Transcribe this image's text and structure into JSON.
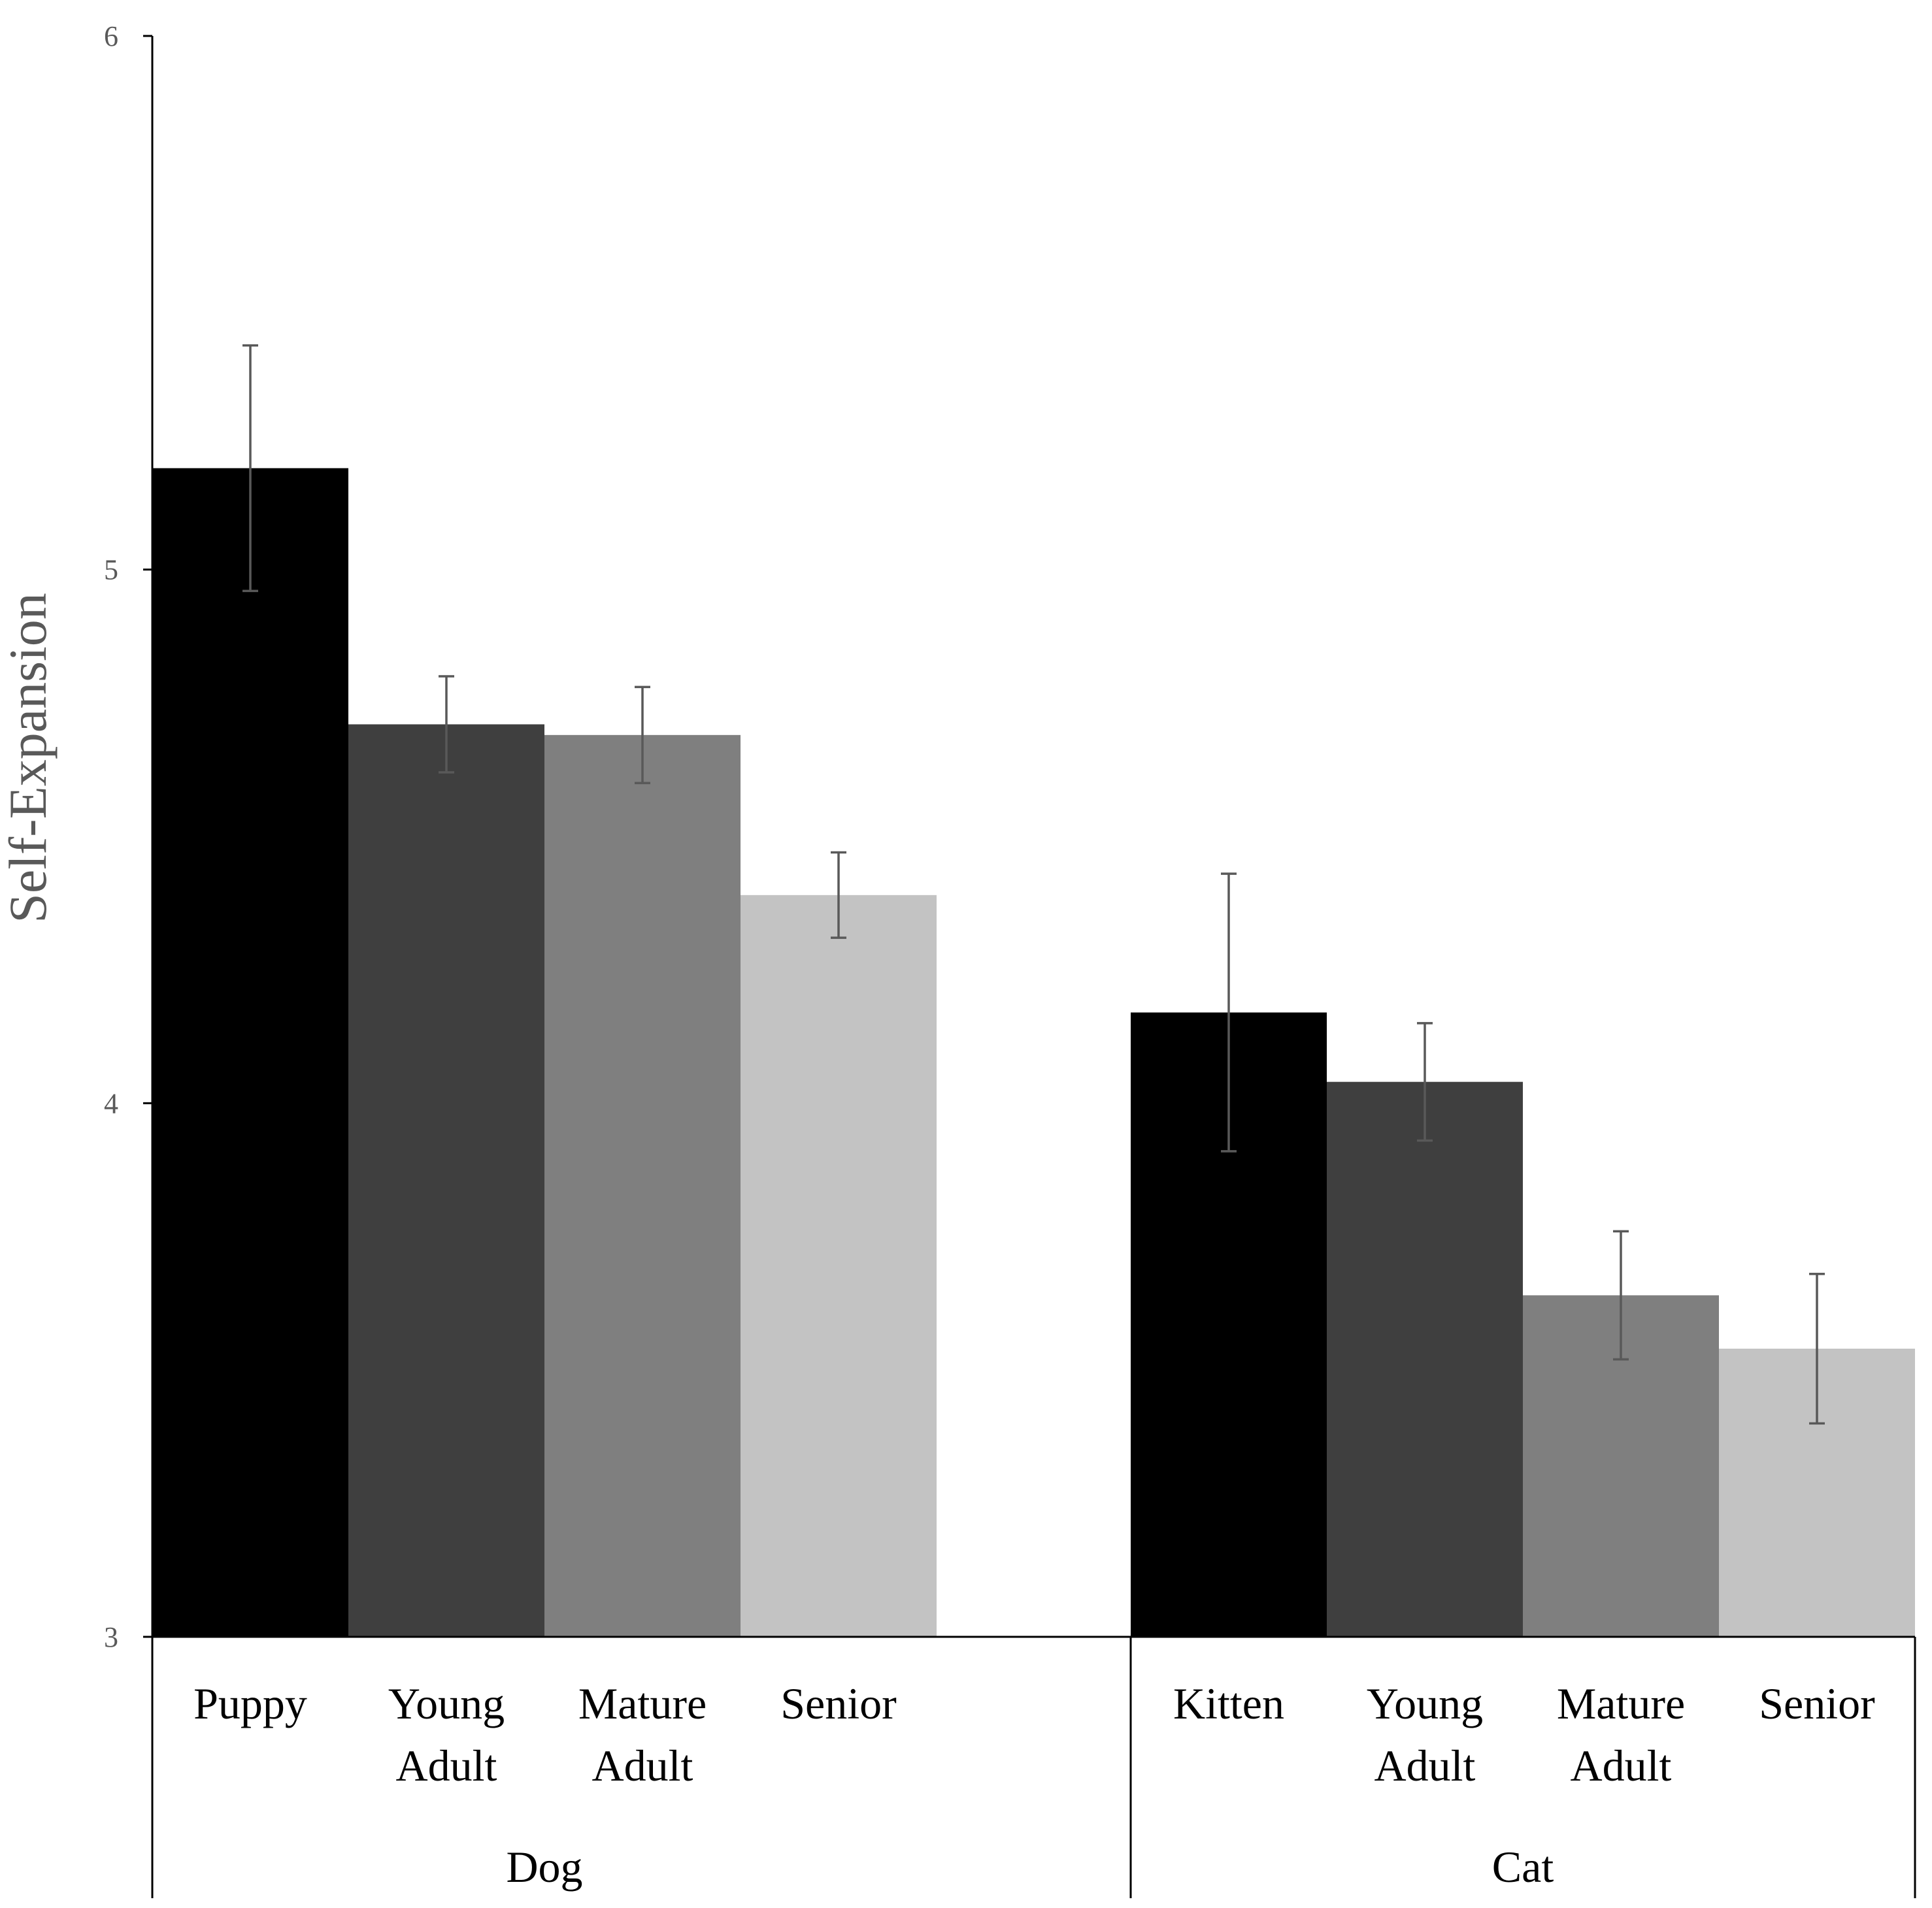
{
  "chart_data": {
    "type": "bar",
    "title": "",
    "xlabel": "",
    "ylabel": "Self-Expansion",
    "ylim": [
      3,
      6
    ],
    "yticks": [
      "3",
      "4",
      "5",
      "6"
    ],
    "grid": false,
    "groups": [
      {
        "name": "Dog",
        "bars": [
          {
            "label_lines": [
              "Puppy"
            ],
            "value": 5.19,
            "err_low": 4.96,
            "err_high": 5.42,
            "color": "#000000"
          },
          {
            "label_lines": [
              "Young",
              "Adult"
            ],
            "value": 4.71,
            "err_low": 4.62,
            "err_high": 4.8,
            "color": "#3f3f3f"
          },
          {
            "label_lines": [
              "Mature",
              "Adult"
            ],
            "value": 4.69,
            "err_low": 4.6,
            "err_high": 4.78,
            "color": "#7f7f7f"
          },
          {
            "label_lines": [
              "Senior"
            ],
            "value": 4.39,
            "err_low": 4.31,
            "err_high": 4.47,
            "color": "#c3c3c3"
          }
        ]
      },
      {
        "name": "Cat",
        "bars": [
          {
            "label_lines": [
              "Kitten"
            ],
            "value": 4.17,
            "err_low": 3.91,
            "err_high": 4.43,
            "color": "#000000"
          },
          {
            "label_lines": [
              "Young",
              "Adult"
            ],
            "value": 4.04,
            "err_low": 3.93,
            "err_high": 4.15,
            "color": "#3f3f3f"
          },
          {
            "label_lines": [
              "Mature",
              "Adult"
            ],
            "value": 3.64,
            "err_low": 3.52,
            "err_high": 3.76,
            "color": "#7f7f7f"
          },
          {
            "label_lines": [
              "Senior"
            ],
            "value": 3.54,
            "err_low": 3.4,
            "err_high": 3.68,
            "color": "#c3c3c3"
          }
        ]
      }
    ]
  }
}
